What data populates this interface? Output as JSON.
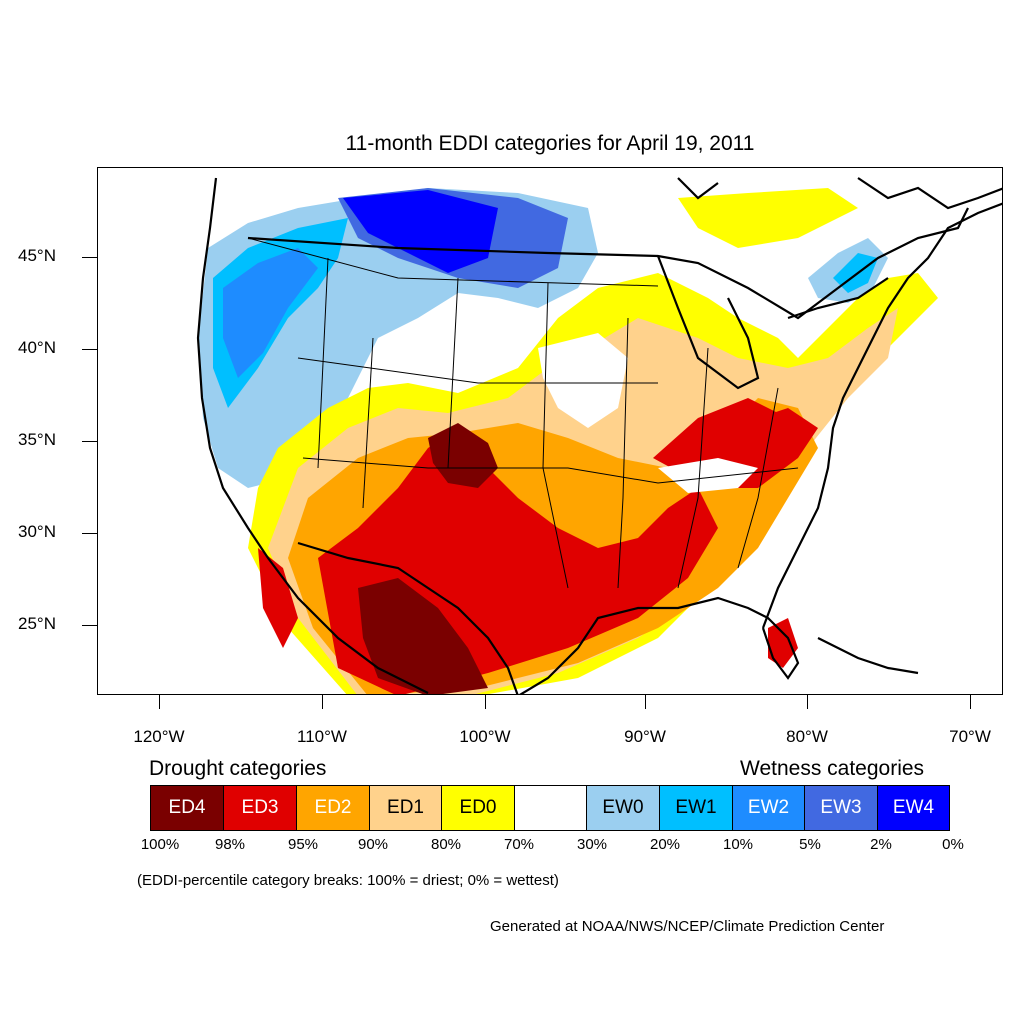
{
  "title": "11-month EDDI categories for April 19, 2011",
  "lat_labels": [
    "45°N",
    "40°N",
    "35°N",
    "30°N",
    "25°N"
  ],
  "lon_labels": [
    "120°W",
    "110°W",
    "100°W",
    "90°W",
    "80°W",
    "70°W"
  ],
  "legend": {
    "drought_heading": "Drought categories",
    "wetness_heading": "Wetness categories",
    "categories": [
      {
        "label": "ED4",
        "color": "#7a0000",
        "text_color": "#ffffff"
      },
      {
        "label": "ED3",
        "color": "#e00000",
        "text_color": "#ffffff"
      },
      {
        "label": "ED2",
        "color": "#ffa500",
        "text_color": "#ffffff"
      },
      {
        "label": "ED1",
        "color": "#ffd28c",
        "text_color": "#000000"
      },
      {
        "label": "ED0",
        "color": "#ffff00",
        "text_color": "#000000"
      },
      {
        "label": "",
        "color": "#ffffff",
        "text_color": "#000000"
      },
      {
        "label": "EW0",
        "color": "#9bcff0",
        "text_color": "#000000"
      },
      {
        "label": "EW1",
        "color": "#00bfff",
        "text_color": "#000000"
      },
      {
        "label": "EW2",
        "color": "#1e8cff",
        "text_color": "#ffffff"
      },
      {
        "label": "EW3",
        "color": "#4169e1",
        "text_color": "#ffffff"
      },
      {
        "label": "EW4",
        "color": "#0000ff",
        "text_color": "#ffffff"
      }
    ],
    "percent_breaks": [
      "100%",
      "98%",
      "95%",
      "90%",
      "80%",
      "70%",
      "30%",
      "20%",
      "10%",
      "5%",
      "2%",
      "0%"
    ]
  },
  "note": "(EDDI-percentile category breaks: 100% = driest; 0% = wettest)",
  "credit": "Generated at NOAA/NWS/NCEP/Climate Prediction Center"
}
